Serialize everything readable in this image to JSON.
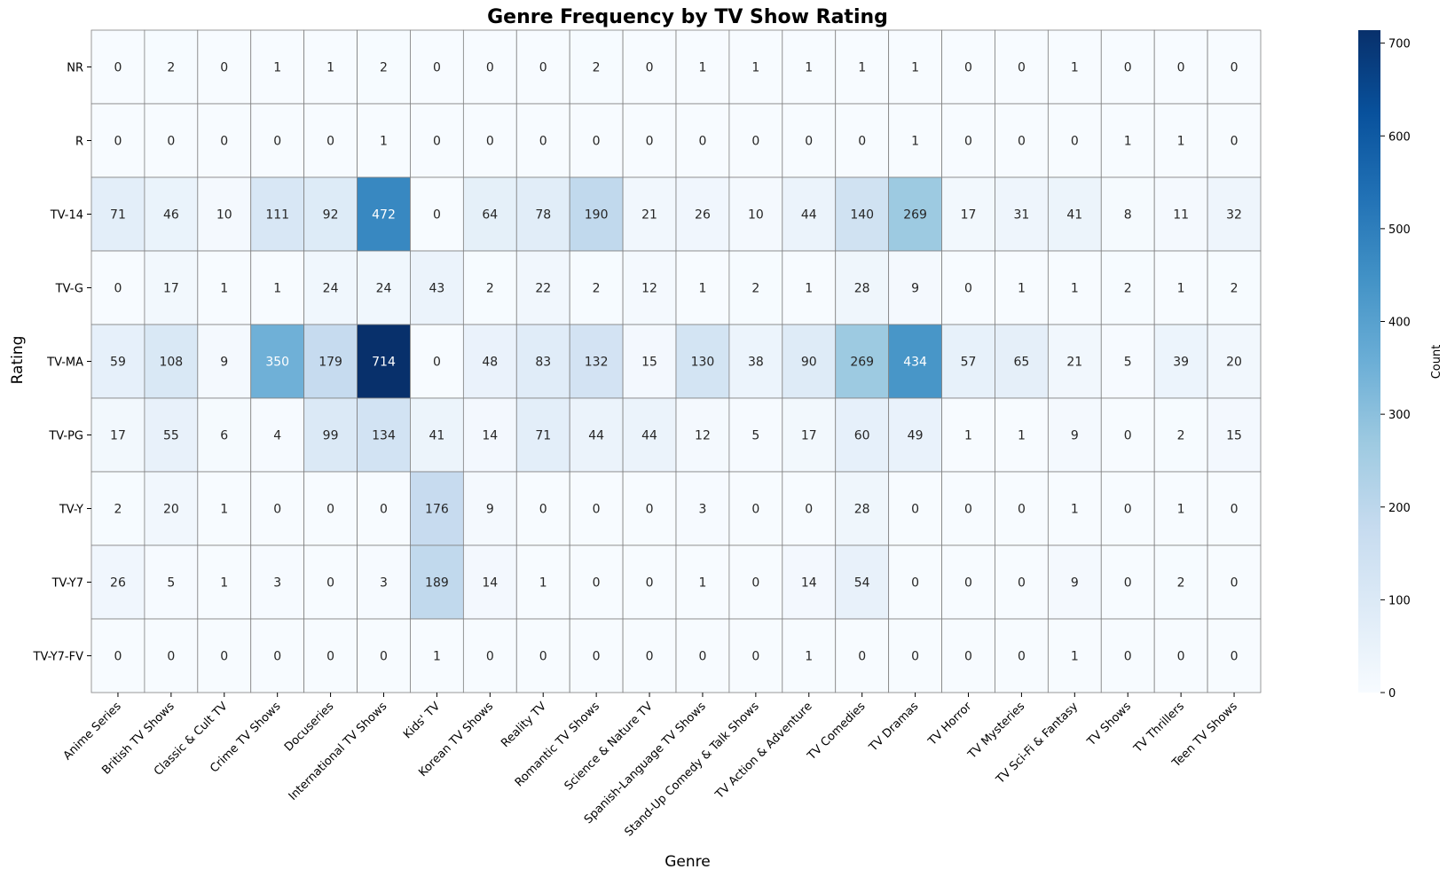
{
  "chart_data": {
    "type": "heatmap",
    "title": "Genre Frequency by TV Show Rating",
    "xlabel": "Genre",
    "ylabel": "Rating",
    "colorbar_label": "Count",
    "colormap": "Blues",
    "vmin": 0,
    "vmax": 714,
    "colorbar_ticks": [
      0,
      100,
      200,
      300,
      400,
      500,
      600,
      700
    ],
    "x_categories": [
      "Anime Series",
      "British TV Shows",
      "Classic & Cult TV",
      "Crime TV Shows",
      "Docuseries",
      "International TV Shows",
      "Kids' TV",
      "Korean TV Shows",
      "Reality TV",
      "Romantic TV Shows",
      "Science & Nature TV",
      "Spanish-Language TV Shows",
      "Stand-Up Comedy & Talk Shows",
      "TV Action & Adventure",
      "TV Comedies",
      "TV Dramas",
      "TV Horror",
      "TV Mysteries",
      "TV Sci-Fi & Fantasy",
      "TV Shows",
      "TV Thrillers",
      "Teen TV Shows"
    ],
    "y_categories": [
      "NR",
      "R",
      "TV-14",
      "TV-G",
      "TV-MA",
      "TV-PG",
      "TV-Y",
      "TV-Y7",
      "TV-Y7-FV"
    ],
    "values": [
      [
        0,
        2,
        0,
        1,
        1,
        2,
        0,
        0,
        0,
        2,
        0,
        1,
        1,
        1,
        1,
        1,
        0,
        0,
        1,
        0,
        0,
        0
      ],
      [
        0,
        0,
        0,
        0,
        0,
        1,
        0,
        0,
        0,
        0,
        0,
        0,
        0,
        0,
        0,
        1,
        0,
        0,
        0,
        1,
        1,
        0
      ],
      [
        71,
        46,
        10,
        111,
        92,
        472,
        0,
        64,
        78,
        190,
        21,
        26,
        10,
        44,
        140,
        269,
        17,
        31,
        41,
        8,
        11,
        32
      ],
      [
        0,
        17,
        1,
        1,
        24,
        24,
        43,
        2,
        22,
        2,
        12,
        1,
        2,
        1,
        28,
        9,
        0,
        1,
        1,
        2,
        1,
        2
      ],
      [
        59,
        108,
        9,
        350,
        179,
        714,
        0,
        48,
        83,
        132,
        15,
        130,
        38,
        90,
        269,
        434,
        57,
        65,
        21,
        5,
        39,
        20
      ],
      [
        17,
        55,
        6,
        4,
        99,
        134,
        41,
        14,
        71,
        44,
        44,
        12,
        5,
        17,
        60,
        49,
        1,
        1,
        9,
        0,
        2,
        15
      ],
      [
        2,
        20,
        1,
        0,
        0,
        0,
        176,
        9,
        0,
        0,
        0,
        3,
        0,
        0,
        28,
        0,
        0,
        0,
        1,
        0,
        1,
        0
      ],
      [
        26,
        5,
        1,
        3,
        0,
        3,
        189,
        14,
        1,
        0,
        0,
        1,
        0,
        14,
        54,
        0,
        0,
        0,
        9,
        0,
        2,
        0
      ],
      [
        0,
        0,
        0,
        0,
        0,
        0,
        1,
        0,
        0,
        0,
        0,
        0,
        0,
        1,
        0,
        0,
        0,
        0,
        1,
        0,
        0,
        0
      ]
    ],
    "grid": true,
    "legend": "colorbar-right"
  }
}
